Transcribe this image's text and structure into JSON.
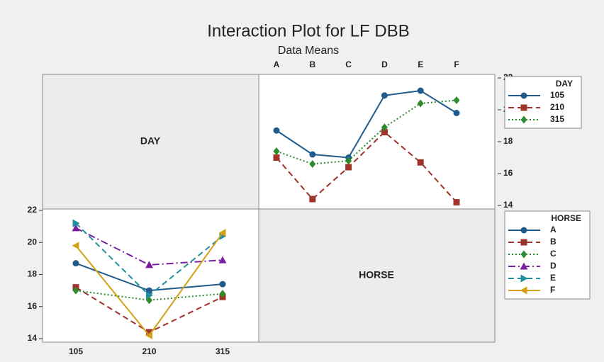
{
  "title": "Interaction Plot for LF DBB",
  "subtitle": "Data Means",
  "panel_labels": [
    "DAY",
    "HORSE"
  ],
  "chart_data": [
    {
      "type": "line",
      "categories": [
        "A",
        "B",
        "C",
        "D",
        "E",
        "F"
      ],
      "legend_title": "DAY",
      "ylim": [
        14,
        22
      ],
      "yticks": [
        14,
        16,
        18,
        20,
        22
      ],
      "series": [
        {
          "name": "105",
          "color": "#1f5b8c",
          "dash": "solid",
          "marker": "circle",
          "values": [
            18.7,
            17.2,
            17.0,
            20.9,
            21.2,
            19.8
          ]
        },
        {
          "name": "210",
          "color": "#a0332a",
          "dash": "dashed",
          "marker": "square",
          "values": [
            17.0,
            14.4,
            16.4,
            18.6,
            16.7,
            14.2
          ]
        },
        {
          "name": "315",
          "color": "#2e8b2e",
          "dash": "dotted",
          "marker": "diamond",
          "values": [
            17.4,
            16.6,
            16.8,
            18.9,
            20.4,
            20.6
          ]
        }
      ]
    },
    {
      "type": "line",
      "categories": [
        "105",
        "210",
        "315"
      ],
      "legend_title": "HORSE",
      "ylim": [
        14,
        22
      ],
      "yticks": [
        14,
        16,
        18,
        20,
        22
      ],
      "series": [
        {
          "name": "A",
          "color": "#1f5b8c",
          "dash": "solid",
          "marker": "circle",
          "values": [
            18.7,
            17.0,
            17.4
          ]
        },
        {
          "name": "B",
          "color": "#a0332a",
          "dash": "dashed",
          "marker": "square",
          "values": [
            17.2,
            14.4,
            16.6
          ]
        },
        {
          "name": "C",
          "color": "#2e8b2e",
          "dash": "dotted",
          "marker": "diamond",
          "values": [
            17.0,
            16.4,
            16.8
          ]
        },
        {
          "name": "D",
          "color": "#7a1fa2",
          "dash": "dashdot",
          "marker": "triangle-up",
          "values": [
            20.9,
            18.6,
            18.9
          ]
        },
        {
          "name": "E",
          "color": "#1f8fa0",
          "dash": "dashed",
          "marker": "triangle-right",
          "values": [
            21.2,
            16.7,
            20.4
          ]
        },
        {
          "name": "F",
          "color": "#d4a017",
          "dash": "solid",
          "marker": "triangle-left",
          "values": [
            19.8,
            14.2,
            20.6
          ]
        }
      ]
    }
  ]
}
